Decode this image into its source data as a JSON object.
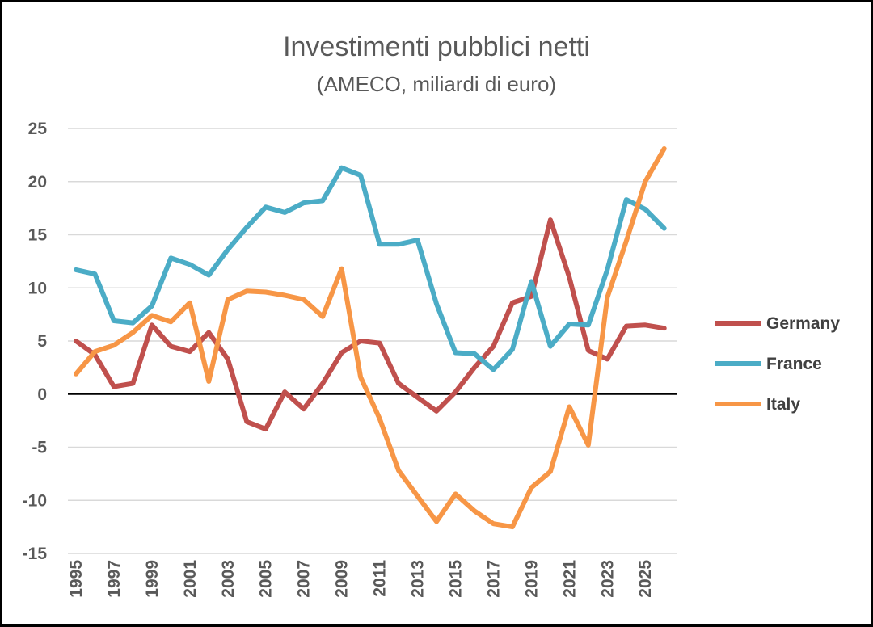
{
  "chart_data": {
    "type": "line",
    "title": "Investimenti pubblici netti",
    "subtitle": "(AMECO, miliardi di euro)",
    "x": [
      1995,
      1996,
      1997,
      1998,
      1999,
      2000,
      2001,
      2002,
      2003,
      2004,
      2005,
      2006,
      2007,
      2008,
      2009,
      2010,
      2011,
      2012,
      2013,
      2014,
      2015,
      2016,
      2017,
      2018,
      2019,
      2020,
      2021,
      2022,
      2023,
      2024,
      2025,
      2026
    ],
    "x_tick_labels": [
      "1995",
      "1997",
      "1999",
      "2001",
      "2003",
      "2005",
      "2007",
      "2009",
      "2011",
      "2013",
      "2015",
      "2017",
      "2019",
      "2021",
      "2023",
      "2025"
    ],
    "y_tick_labels": [
      "25",
      "20",
      "15",
      "10",
      "5",
      "0",
      "-5",
      "-10",
      "-15"
    ],
    "y_ticks": [
      25,
      20,
      15,
      10,
      5,
      0,
      -5,
      -10,
      -15
    ],
    "ylim": [
      -15,
      25
    ],
    "grid": true,
    "legend_position": "right",
    "series": [
      {
        "name": "Germany",
        "color": "#c0504d",
        "values": [
          5.0,
          3.7,
          0.7,
          1.0,
          6.5,
          4.5,
          4.0,
          5.8,
          3.3,
          -2.6,
          -3.3,
          0.2,
          -1.4,
          1.0,
          3.9,
          5.0,
          4.8,
          1.0,
          -0.3,
          -1.6,
          0.2,
          2.5,
          4.5,
          8.6,
          9.2,
          16.4,
          11.0,
          4.1,
          3.3,
          6.4,
          6.5,
          6.2
        ]
      },
      {
        "name": "France",
        "color": "#4bacc6",
        "values": [
          11.7,
          11.3,
          6.9,
          6.7,
          8.3,
          12.8,
          12.2,
          11.2,
          13.6,
          15.7,
          17.6,
          17.1,
          18.0,
          18.2,
          21.3,
          20.6,
          14.1,
          14.1,
          14.5,
          8.5,
          3.9,
          3.8,
          2.3,
          4.2,
          10.6,
          4.5,
          6.6,
          6.5,
          11.7,
          18.3,
          17.4,
          15.6
        ]
      },
      {
        "name": "Italy",
        "color": "#f79646",
        "values": [
          1.9,
          4.0,
          4.6,
          5.8,
          7.4,
          6.8,
          8.6,
          1.2,
          8.9,
          9.7,
          9.6,
          9.3,
          8.9,
          7.3,
          11.8,
          1.6,
          -2.3,
          -7.2,
          -9.6,
          -12.0,
          -9.4,
          -11.0,
          -12.2,
          -12.5,
          -8.8,
          -7.3,
          -1.2,
          -4.8,
          9.1,
          14.4,
          20.0,
          23.1
        ]
      }
    ]
  }
}
